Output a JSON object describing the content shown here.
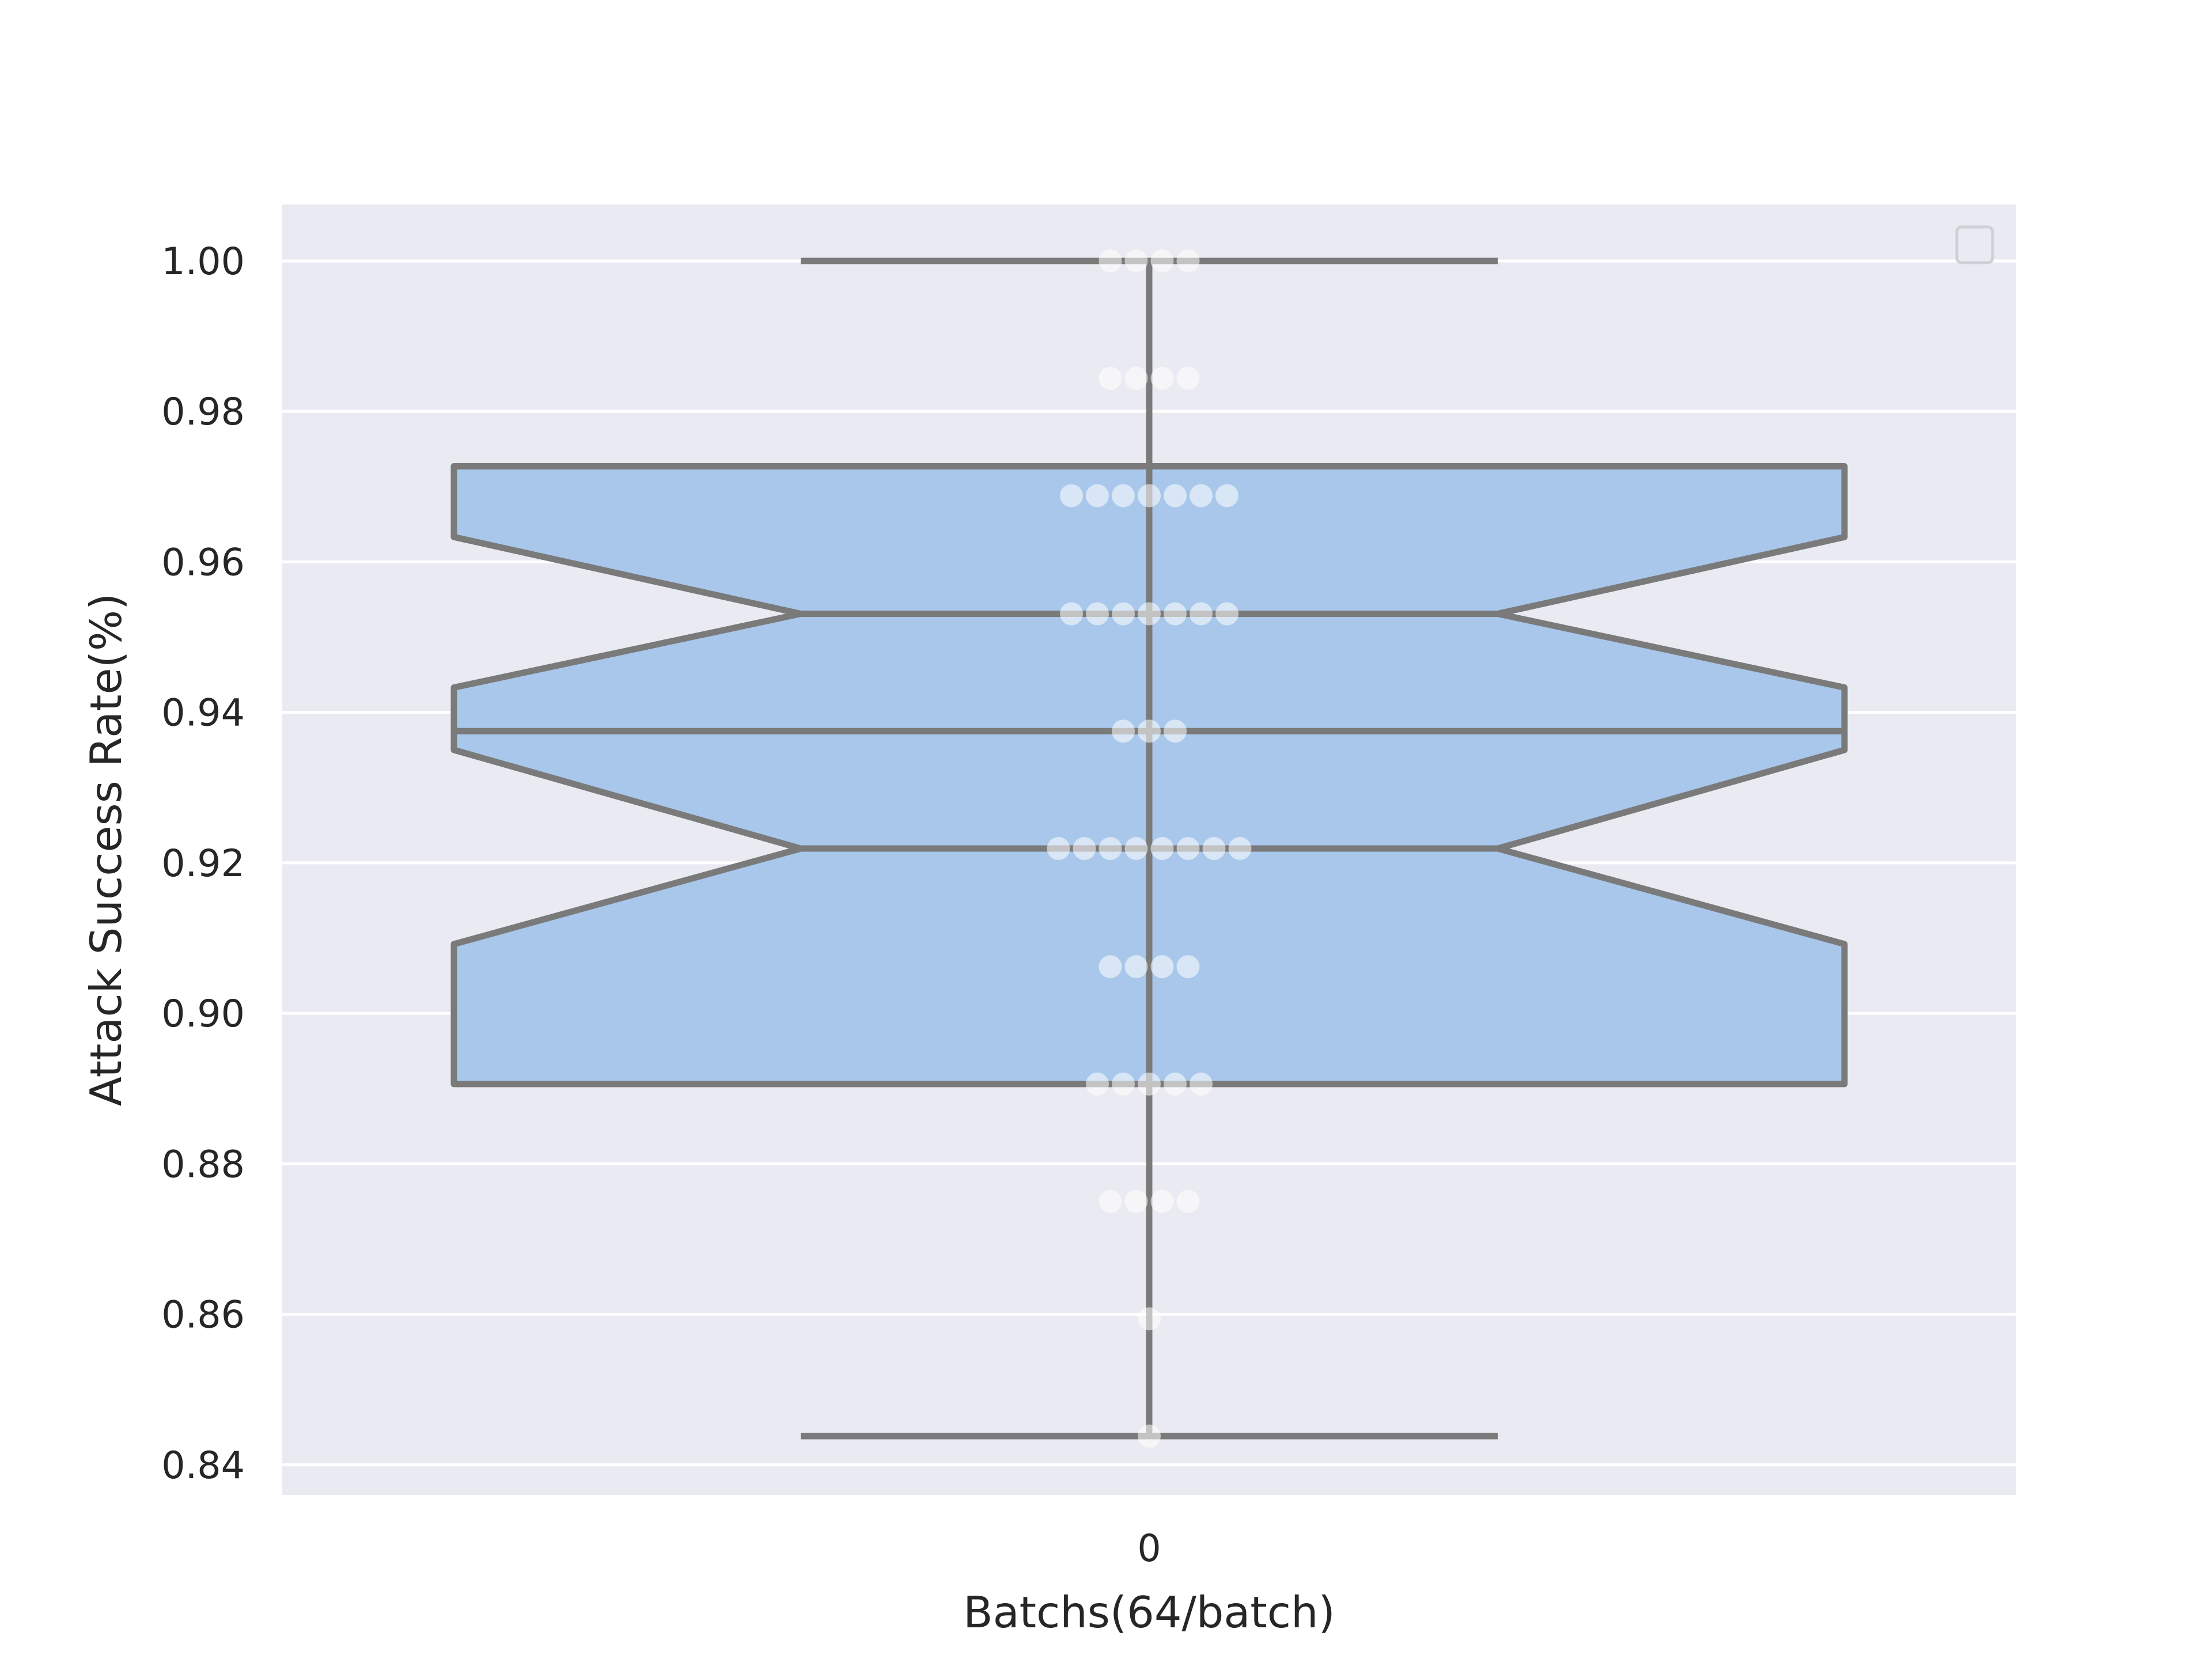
{
  "chart_data": {
    "type": "box",
    "xlabel": "Batchs(64/batch)",
    "ylabel": "Attack Success Rate(%)",
    "categories": [
      "0"
    ],
    "ylim": [
      0.836,
      1.0075
    ],
    "yticks": [
      "0.84",
      "0.86",
      "0.88",
      "0.90",
      "0.92",
      "0.94",
      "0.96",
      "0.98",
      "1.00"
    ],
    "yticks_values": [
      0.84,
      0.86,
      0.88,
      0.9,
      0.92,
      0.94,
      0.96,
      0.98,
      1.0
    ],
    "grid": true,
    "legend": "top-right (empty)",
    "notch": true,
    "box": {
      "whisker_low": 0.8438,
      "q1": 0.8906,
      "notch_low": 0.9219,
      "median": 0.9375,
      "notch_high": 0.9531,
      "q3": 0.9727,
      "whisker_high": 1.0
    },
    "points": [
      {
        "y": 1.0,
        "count": 4
      },
      {
        "y": 0.9844,
        "count": 4
      },
      {
        "y": 0.9688,
        "count": 7
      },
      {
        "y": 0.9531,
        "count": 7
      },
      {
        "y": 0.9375,
        "count": 3
      },
      {
        "y": 0.9219,
        "count": 8
      },
      {
        "y": 0.9062,
        "count": 4
      },
      {
        "y": 0.8906,
        "count": 5
      },
      {
        "y": 0.875,
        "count": 4
      },
      {
        "y": 0.8594,
        "count": 1
      },
      {
        "y": 0.8438,
        "count": 1
      }
    ],
    "colors": {
      "background": "#eaeaf2",
      "grid": "#ffffff",
      "box_fill": "#a8c7eb",
      "box_edge": "#7a7a7a",
      "point": "#ffffff"
    }
  }
}
